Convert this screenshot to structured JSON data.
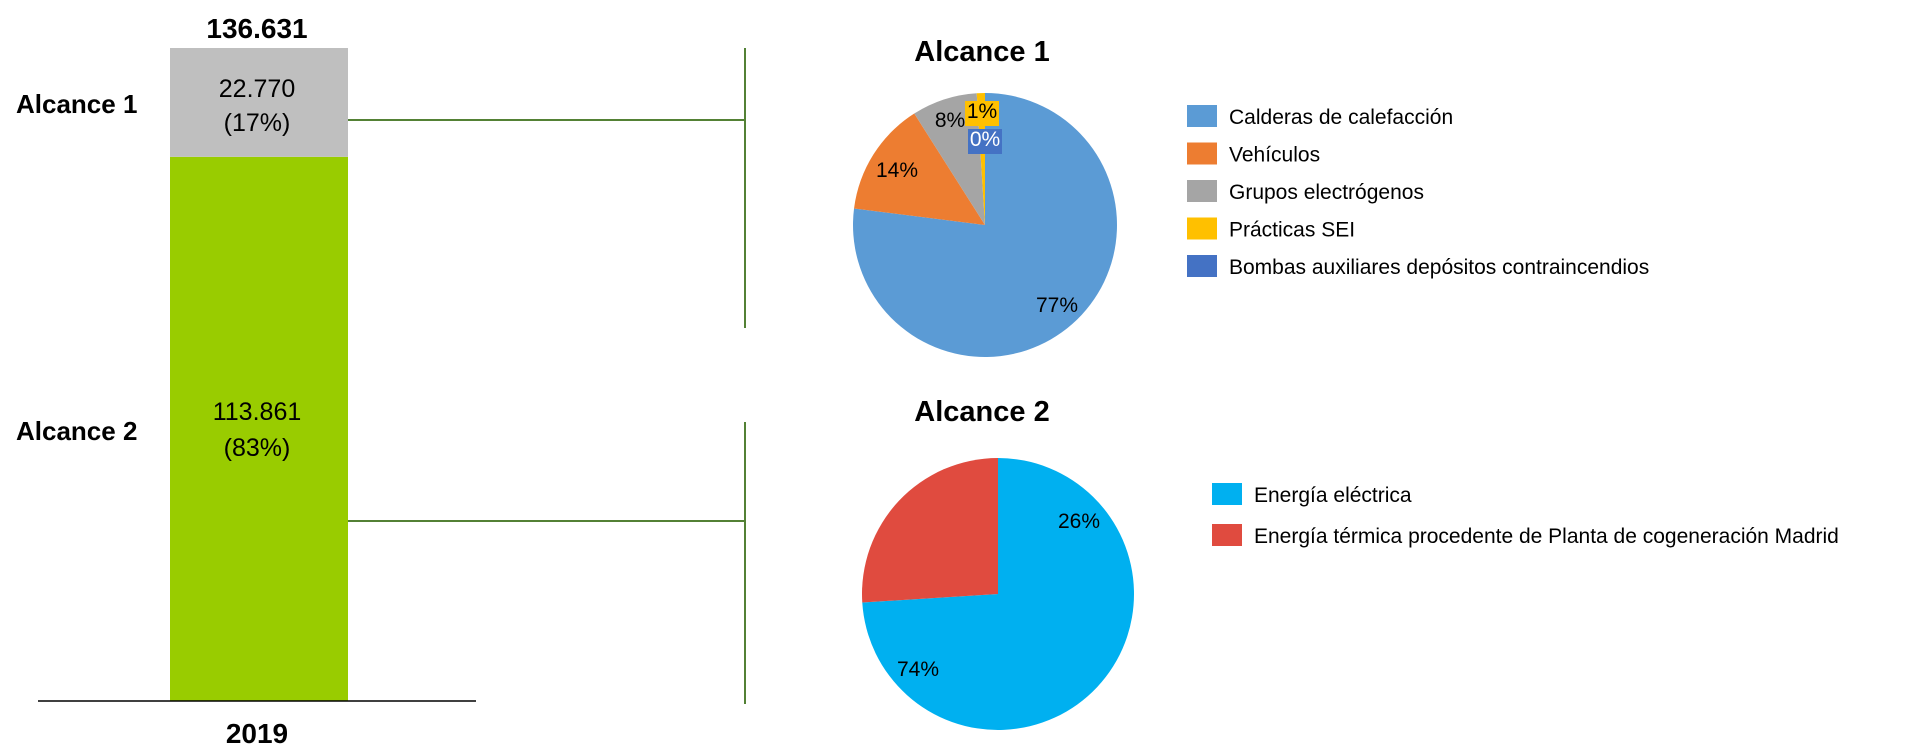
{
  "chart_data": [
    {
      "type": "bar",
      "stacked": true,
      "categories": [
        "2019"
      ],
      "total_label": "136.631",
      "total": 136631,
      "series": [
        {
          "name": "Alcance 2",
          "values": [
            113861
          ],
          "value_label": "113.861",
          "pct_label": "(83%)",
          "color": "#99CC00"
        },
        {
          "name": "Alcance 1",
          "values": [
            22770
          ],
          "value_label": "22.770",
          "pct_label": "(17%)",
          "color": "#BFBFBF"
        }
      ]
    },
    {
      "type": "pie",
      "title": "Alcance 1",
      "slices": [
        {
          "label": "Calderas de calefacción",
          "value": 77,
          "value_label": "77%",
          "color": "#5B9BD5"
        },
        {
          "label": "Vehículos",
          "value": 14,
          "value_label": "14%",
          "color": "#ED7D31"
        },
        {
          "label": "Grupos electrógenos",
          "value": 8,
          "value_label": "8%",
          "color": "#A5A5A5"
        },
        {
          "label": "Prácticas SEI",
          "value": 1,
          "value_label": "1%",
          "color": "#FFC000"
        },
        {
          "label": "Bombas auxiliares depósitos contraincendios",
          "value": 0,
          "value_label": "0%",
          "color": "#4472C4"
        }
      ],
      "legend_position": "right"
    },
    {
      "type": "pie",
      "title": "Alcance 2",
      "slices": [
        {
          "label": "Energía eléctrica",
          "value": 74,
          "value_label": "74%",
          "color": "#00B0F0"
        },
        {
          "label": "Energía térmica procedente de Planta de cogeneración Madrid",
          "value": 26,
          "value_label": "26%",
          "color": "#E04B3F"
        }
      ],
      "legend_position": "right"
    }
  ],
  "connector_color": "#538135"
}
